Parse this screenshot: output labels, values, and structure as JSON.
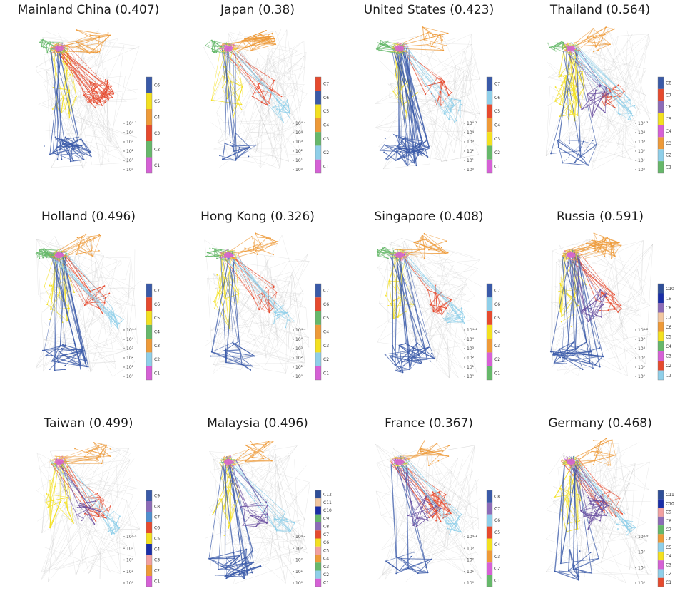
{
  "colors": {
    "C1": "#d660d6",
    "C2": "#8fcfe9",
    "C3": "#ee9a38",
    "C4": "#f3e020",
    "C5": "#e64a2e",
    "C6": "#4f8fcf",
    "C7": "#3a5aa8",
    "C8": "#6a4fa0",
    "C9": "#8c6bb8",
    "C10": "#1a2ea8",
    "C11": "#f2c7a0",
    "C12": "#2f4f98",
    "green": "#66b86a",
    "grey": "#bdbdbd"
  },
  "size_ticks_default": [
    "10⁰",
    "10¹",
    "10²",
    "10³",
    "10⁴",
    "10⁴·³"
  ],
  "panels": [
    {
      "title": "Mainland China (0.407)",
      "ticks": [
        "10⁰",
        "10¹",
        "10²",
        "10³",
        "10⁴",
        "10⁴·³"
      ],
      "legend": [
        {
          "label": "C6",
          "color": "#3a5aa8"
        },
        {
          "label": "C5",
          "color": "#f3e020"
        },
        {
          "label": "C4",
          "color": "#ee9a38"
        },
        {
          "label": "C3",
          "color": "#e64a2e"
        },
        {
          "label": "C2",
          "color": "#66b86a"
        },
        {
          "label": "C1",
          "color": "#d660d6"
        }
      ],
      "regions": {
        "yellow": 1,
        "red": 3,
        "orange": 1,
        "blue": 2,
        "cyan": 0,
        "purple": 0,
        "green": 1
      }
    },
    {
      "title": "Japan (0.38)",
      "ticks": [
        "10⁰",
        "10¹",
        "10²",
        "10³",
        "10⁴",
        "10⁴·⁴"
      ],
      "legend": [
        {
          "label": "C7",
          "color": "#e64a2e"
        },
        {
          "label": "C6",
          "color": "#3a5aa8"
        },
        {
          "label": "C5",
          "color": "#f3e020"
        },
        {
          "label": "C4",
          "color": "#ee9a38"
        },
        {
          "label": "C3",
          "color": "#66b86a"
        },
        {
          "label": "C2",
          "color": "#8fcfe9"
        },
        {
          "label": "C1",
          "color": "#d660d6"
        }
      ],
      "regions": {
        "yellow": 1,
        "red": 1,
        "orange": 2,
        "blue": 1,
        "cyan": 1,
        "purple": 0,
        "green": 1
      }
    },
    {
      "title": "United States (0.423)",
      "ticks": [
        "10⁰",
        "10¹",
        "10²",
        "10³",
        "10⁴",
        "10⁴·²"
      ],
      "legend": [
        {
          "label": "C7",
          "color": "#3a5aa8"
        },
        {
          "label": "C6",
          "color": "#8fcfe9"
        },
        {
          "label": "C5",
          "color": "#e64a2e"
        },
        {
          "label": "C4",
          "color": "#ee9a38"
        },
        {
          "label": "C3",
          "color": "#f3e020"
        },
        {
          "label": "C2",
          "color": "#66b86a"
        },
        {
          "label": "C1",
          "color": "#d660d6"
        }
      ],
      "regions": {
        "yellow": 1,
        "red": 1,
        "orange": 1,
        "blue": 3,
        "cyan": 1,
        "purple": 0,
        "green": 1
      }
    },
    {
      "title": "Thailand (0.564)",
      "ticks": [
        "10⁰",
        "10¹",
        "10²",
        "10³",
        "10⁴",
        "10⁴·³"
      ],
      "legend": [
        {
          "label": "C8",
          "color": "#3a5aa8"
        },
        {
          "label": "C7",
          "color": "#e64a2e"
        },
        {
          "label": "C6",
          "color": "#8c6bb8"
        },
        {
          "label": "C5",
          "color": "#f3e020"
        },
        {
          "label": "C4",
          "color": "#d660d6"
        },
        {
          "label": "C3",
          "color": "#ee9a38"
        },
        {
          "label": "C2",
          "color": "#8fcfe9"
        },
        {
          "label": "C1",
          "color": "#66b86a"
        }
      ],
      "regions": {
        "yellow": 2,
        "red": 1,
        "orange": 1,
        "blue": 1,
        "cyan": 1,
        "purple": 1,
        "green": 1
      }
    },
    {
      "title": "Holland (0.496)",
      "ticks": [
        "10⁰",
        "10¹",
        "10²",
        "10³",
        "10⁴",
        "10⁴·³"
      ],
      "legend": [
        {
          "label": "C7",
          "color": "#3a5aa8"
        },
        {
          "label": "C6",
          "color": "#e64a2e"
        },
        {
          "label": "C5",
          "color": "#f3e020"
        },
        {
          "label": "C4",
          "color": "#66b86a"
        },
        {
          "label": "C3",
          "color": "#ee9a38"
        },
        {
          "label": "C2",
          "color": "#8fcfe9"
        },
        {
          "label": "C1",
          "color": "#d660d6"
        }
      ],
      "regions": {
        "yellow": 1,
        "red": 1,
        "orange": 1,
        "blue": 2,
        "cyan": 1,
        "purple": 0,
        "green": 2
      }
    },
    {
      "title": "Hong Kong (0.326)",
      "ticks": [
        "10⁰",
        "10¹",
        "10²",
        "10³",
        "10⁴",
        "10⁴·⁴"
      ],
      "legend": [
        {
          "label": "C7",
          "color": "#3a5aa8"
        },
        {
          "label": "C6",
          "color": "#e64a2e"
        },
        {
          "label": "C5",
          "color": "#66b86a"
        },
        {
          "label": "C4",
          "color": "#ee9a38"
        },
        {
          "label": "C3",
          "color": "#f3e020"
        },
        {
          "label": "C2",
          "color": "#8fcfe9"
        },
        {
          "label": "C1",
          "color": "#d660d6"
        }
      ],
      "regions": {
        "yellow": 1,
        "red": 1,
        "orange": 1,
        "blue": 1,
        "cyan": 1,
        "purple": 0,
        "green": 1
      }
    },
    {
      "title": "Singapore (0.408)",
      "ticks": [
        "10⁰",
        "10¹",
        "10²",
        "10³",
        "10⁴",
        "10⁴·⁴"
      ],
      "legend": [
        {
          "label": "C7",
          "color": "#3a5aa8"
        },
        {
          "label": "C6",
          "color": "#8fcfe9"
        },
        {
          "label": "C5",
          "color": "#e64a2e"
        },
        {
          "label": "C4",
          "color": "#f3e020"
        },
        {
          "label": "C3",
          "color": "#ee9a38"
        },
        {
          "label": "C2",
          "color": "#d660d6"
        },
        {
          "label": "C1",
          "color": "#66b86a"
        }
      ],
      "regions": {
        "yellow": 1,
        "red": 1,
        "orange": 1,
        "blue": 2,
        "cyan": 1,
        "purple": 0,
        "green": 1
      }
    },
    {
      "title": "Russia (0.591)",
      "ticks": [
        "10⁰",
        "10¹",
        "10²",
        "10³",
        "10⁴",
        "10⁴·²"
      ],
      "legend": [
        {
          "label": "C10",
          "color": "#2f4f98"
        },
        {
          "label": "C9",
          "color": "#1a2ea8"
        },
        {
          "label": "C8",
          "color": "#8c6bb8"
        },
        {
          "label": "C7",
          "color": "#f2c7a0"
        },
        {
          "label": "C6",
          "color": "#ee9a38"
        },
        {
          "label": "C5",
          "color": "#f3e020"
        },
        {
          "label": "C4",
          "color": "#66b86a"
        },
        {
          "label": "C3",
          "color": "#d660d6"
        },
        {
          "label": "C2",
          "color": "#e64a2e"
        },
        {
          "label": "C1",
          "color": "#8fcfe9"
        }
      ],
      "regions": {
        "yellow": 1,
        "red": 1,
        "orange": 2,
        "blue": 2,
        "cyan": 0,
        "purple": 1,
        "green": 0
      }
    },
    {
      "title": "Taiwan (0.499)",
      "ticks": [
        "10⁰",
        "10¹",
        "10²",
        "10³",
        "10⁴·⁴"
      ],
      "legend": [
        {
          "label": "C9",
          "color": "#3a5aa8"
        },
        {
          "label": "C8",
          "color": "#8c6bb8"
        },
        {
          "label": "C7",
          "color": "#4f8fcf"
        },
        {
          "label": "C6",
          "color": "#e64a2e"
        },
        {
          "label": "C5",
          "color": "#f3e020"
        },
        {
          "label": "C4",
          "color": "#1a2ea8"
        },
        {
          "label": "C3",
          "color": "#f2a0a0"
        },
        {
          "label": "C2",
          "color": "#ee9a38"
        },
        {
          "label": "C1",
          "color": "#d660d6"
        }
      ],
      "regions": {
        "yellow": 1,
        "red": 1,
        "orange": 1,
        "blue": 0,
        "cyan": 1,
        "purple": 1,
        "green": 0
      }
    },
    {
      "title": "Malaysia (0.496)",
      "ticks": [
        "10⁰",
        "10¹",
        "10²",
        "10³",
        "10⁴·²"
      ],
      "legend": [
        {
          "label": "C12",
          "color": "#2f4f98"
        },
        {
          "label": "C11",
          "color": "#f2c7a0"
        },
        {
          "label": "C10",
          "color": "#1a2ea8"
        },
        {
          "label": "C9",
          "color": "#66b86a"
        },
        {
          "label": "C8",
          "color": "#8c6bb8"
        },
        {
          "label": "C7",
          "color": "#e64a2e"
        },
        {
          "label": "C6",
          "color": "#f3e020"
        },
        {
          "label": "C5",
          "color": "#f2a0a0"
        },
        {
          "label": "C4",
          "color": "#ee9a38"
        },
        {
          "label": "C3",
          "color": "#66b86a"
        },
        {
          "label": "C2",
          "color": "#8fcfe9"
        },
        {
          "label": "C1",
          "color": "#d660d6"
        }
      ],
      "regions": {
        "yellow": 1,
        "red": 0,
        "orange": 1,
        "blue": 2,
        "cyan": 1,
        "purple": 1,
        "green": 0
      }
    },
    {
      "title": "France (0.367)",
      "ticks": [
        "10⁰",
        "10¹",
        "10²",
        "10³",
        "10⁴·¹"
      ],
      "legend": [
        {
          "label": "C8",
          "color": "#3a5aa8"
        },
        {
          "label": "C7",
          "color": "#8c6bb8"
        },
        {
          "label": "C6",
          "color": "#8fcfe9"
        },
        {
          "label": "C5",
          "color": "#e64a2e"
        },
        {
          "label": "C4",
          "color": "#f3e020"
        },
        {
          "label": "C3",
          "color": "#ee9a38"
        },
        {
          "label": "C2",
          "color": "#d660d6"
        },
        {
          "label": "C1",
          "color": "#66b86a"
        }
      ],
      "regions": {
        "yellow": 0,
        "red": 2,
        "orange": 1,
        "blue": 1,
        "cyan": 1,
        "purple": 1,
        "green": 0
      }
    },
    {
      "title": "Germany (0.468)",
      "ticks": [
        "10⁰",
        "10¹",
        "10²",
        "10³·⁹"
      ],
      "legend": [
        {
          "label": "C11",
          "color": "#2f4f98"
        },
        {
          "label": "C10",
          "color": "#1a2ea8"
        },
        {
          "label": "C9",
          "color": "#f2a0a0"
        },
        {
          "label": "C8",
          "color": "#8c6bb8"
        },
        {
          "label": "C7",
          "color": "#66b86a"
        },
        {
          "label": "C6",
          "color": "#ee9a38"
        },
        {
          "label": "C5",
          "color": "#8fcfe9"
        },
        {
          "label": "C4",
          "color": "#f3e020"
        },
        {
          "label": "C3",
          "color": "#d660d6"
        },
        {
          "label": "C2",
          "color": "#8fcfe9"
        },
        {
          "label": "C1",
          "color": "#e64a2e"
        }
      ],
      "regions": {
        "yellow": 1,
        "red": 1,
        "orange": 1,
        "blue": 1,
        "cyan": 1,
        "purple": 2,
        "green": 0
      }
    }
  ]
}
